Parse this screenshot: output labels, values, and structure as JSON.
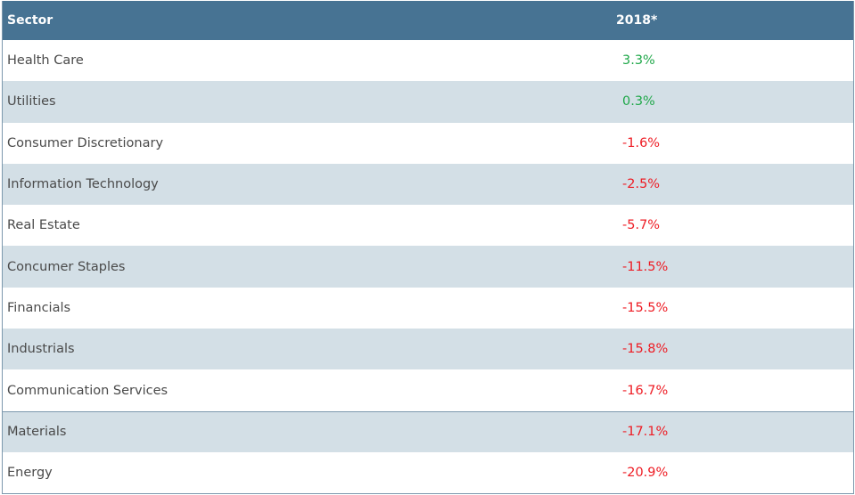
{
  "colors": {
    "header_bg": "#477393",
    "alt_row_bg": "#d3dfe6",
    "positive": "#20a84a",
    "negative": "#ee1c24"
  },
  "chart_data": {
    "type": "table",
    "columns": [
      "Sector",
      "2018*"
    ],
    "rows": [
      {
        "sector": "Health Care",
        "value": "3.3%",
        "number": 3.3
      },
      {
        "sector": "Utilities",
        "value": "0.3%",
        "number": 0.3
      },
      {
        "sector": "Consumer Discretionary",
        "value": "-1.6%",
        "number": -1.6
      },
      {
        "sector": "Information Technology",
        "value": "-2.5%",
        "number": -2.5
      },
      {
        "sector": "Real Estate",
        "value": "-5.7%",
        "number": -5.7
      },
      {
        "sector": "Concumer Staples",
        "value": "-11.5%",
        "number": -11.5
      },
      {
        "sector": "Financials",
        "value": "-15.5%",
        "number": -15.5
      },
      {
        "sector": "Industrials",
        "value": "-15.8%",
        "number": -15.8
      },
      {
        "sector": "Communication Services",
        "value": "-16.7%",
        "number": -16.7
      },
      {
        "sector": "Materials",
        "value": "-17.1%",
        "number": -17.1
      },
      {
        "sector": "Energy",
        "value": "-20.9%",
        "number": -20.9
      }
    ]
  }
}
